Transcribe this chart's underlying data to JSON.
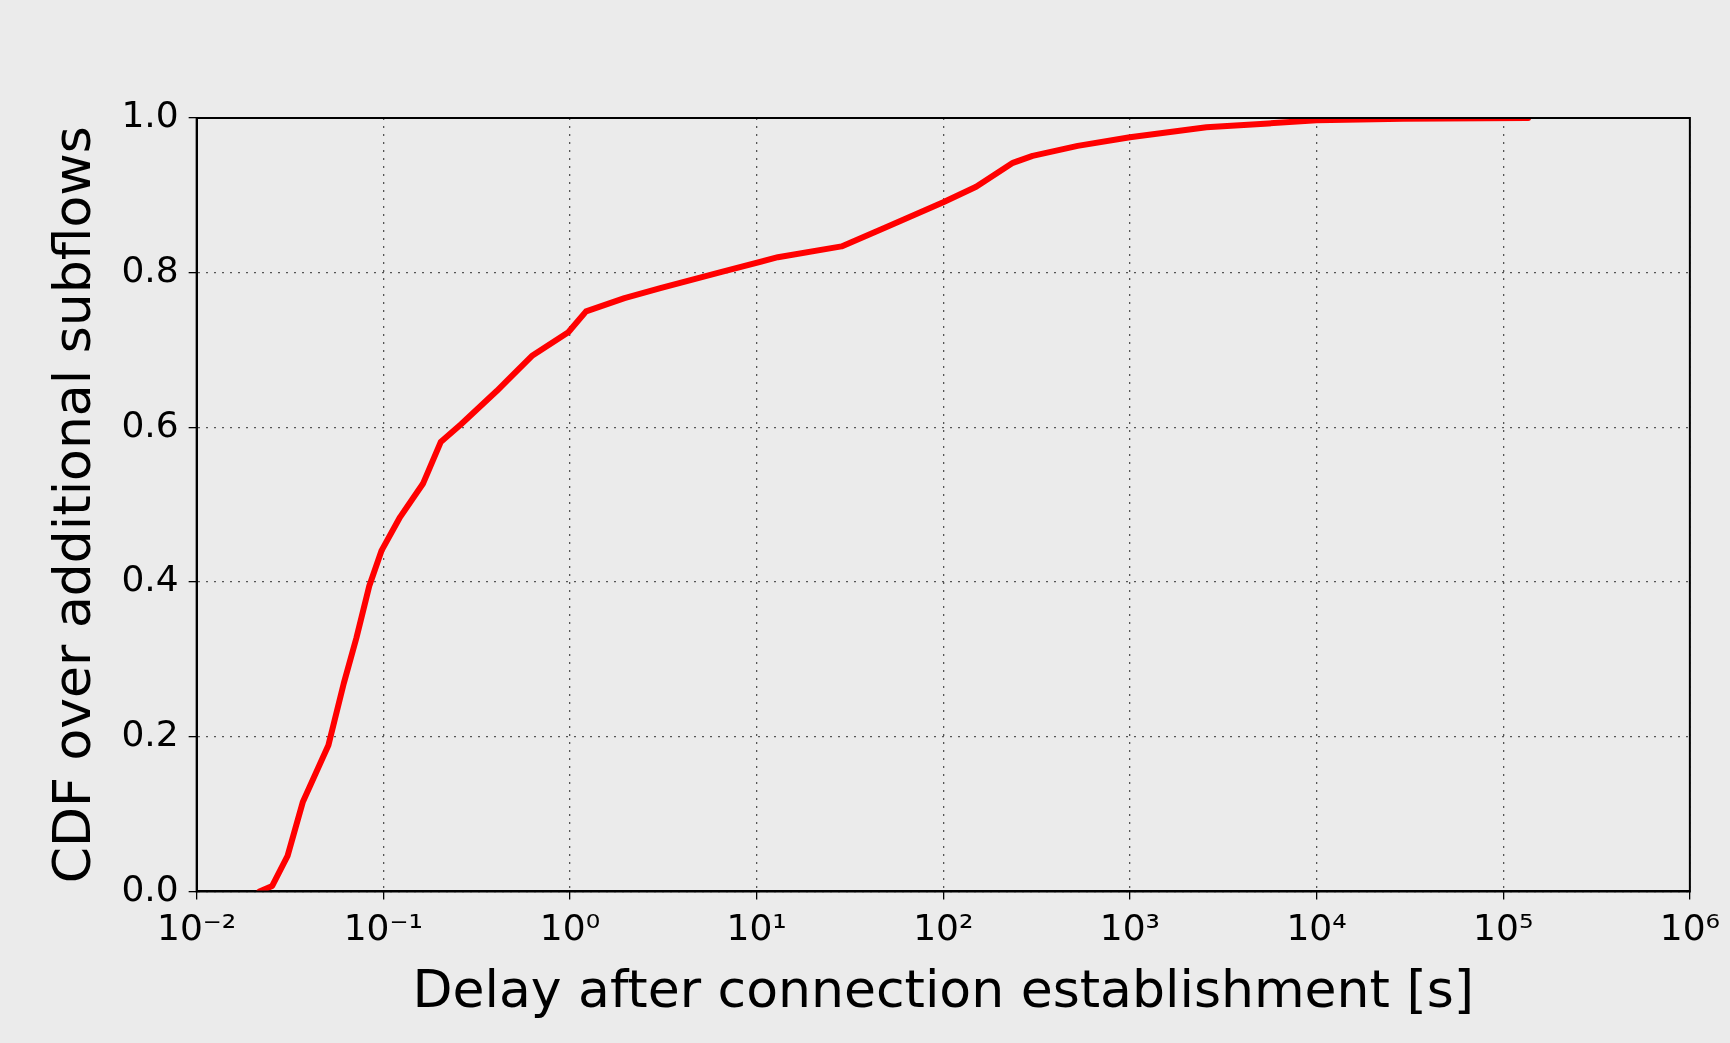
{
  "chart_data": {
    "type": "line",
    "xlabel": "Delay after connection establishment [s]",
    "ylabel": "CDF over additional subflows",
    "log": "x",
    "grid": true,
    "legend": false,
    "marker": "none",
    "line_style": "solid",
    "xlim": [
      0.01,
      1000000
    ],
    "xticks": [
      {
        "value": 0.01,
        "label": "10⁻²"
      },
      {
        "value": 0.1,
        "label": "10⁻¹"
      },
      {
        "value": 1,
        "label": "10⁰"
      },
      {
        "value": 10,
        "label": "10¹"
      },
      {
        "value": 100,
        "label": "10²"
      },
      {
        "value": 1000,
        "label": "10³"
      },
      {
        "value": 10000,
        "label": "10⁴"
      },
      {
        "value": 100000,
        "label": "10⁵"
      },
      {
        "value": 1000000,
        "label": "10⁶"
      }
    ],
    "ylim": [
      0,
      1
    ],
    "yticks": [
      {
        "value": 0,
        "label": "0.0"
      },
      {
        "value": 0.2,
        "label": "0.2"
      },
      {
        "value": 0.4,
        "label": "0.4"
      },
      {
        "value": 0.6,
        "label": "0.6"
      },
      {
        "value": 0.8,
        "label": "0.8"
      },
      {
        "value": 1,
        "label": "1.0"
      }
    ],
    "series": [
      {
        "color": "#ff0000",
        "x": [
          0.0217,
          0.0254,
          0.0307,
          0.0371,
          0.0508,
          0.0614,
          0.0718,
          0.0841,
          0.098,
          0.123,
          0.163,
          0.203,
          0.261,
          0.405,
          0.63,
          0.98,
          1.22,
          1.96,
          3.05,
          6.5,
          13,
          28.5,
          49.7,
          100,
          150,
          236,
          301,
          525,
          1000,
          2570,
          5540,
          10000,
          29100,
          136000
        ],
        "values": [
          0,
          0.007,
          0.046,
          0.116,
          0.189,
          0.269,
          0.328,
          0.395,
          0.441,
          0.484,
          0.527,
          0.581,
          0.604,
          0.647,
          0.693,
          0.723,
          0.75,
          0.767,
          0.78,
          0.801,
          0.82,
          0.834,
          0.859,
          0.891,
          0.911,
          0.942,
          0.951,
          0.964,
          0.975,
          0.988,
          0.993,
          0.997,
          0.999,
          1
        ]
      }
    ]
  }
}
